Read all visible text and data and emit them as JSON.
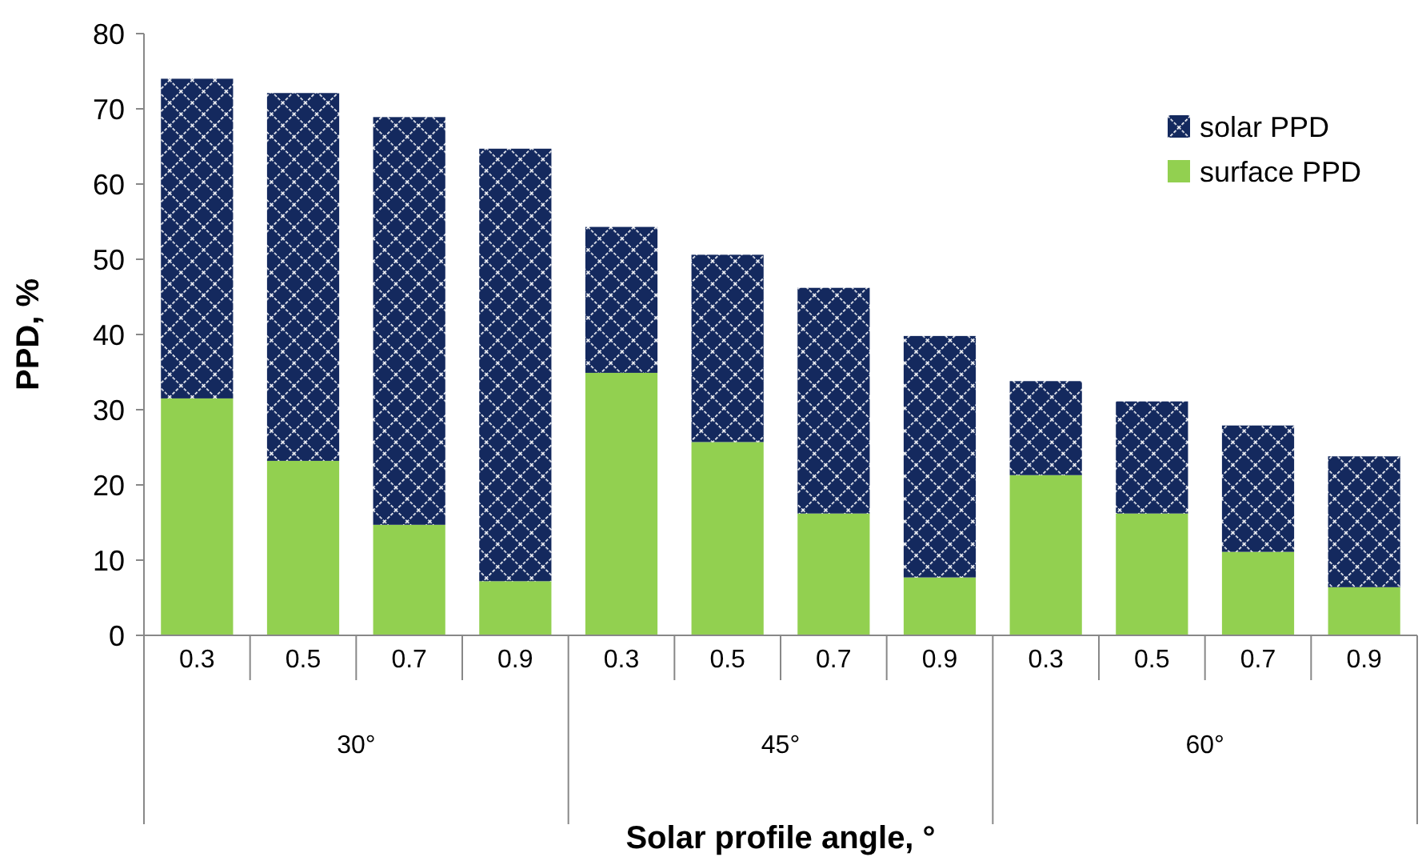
{
  "chart_data": {
    "type": "bar",
    "stacked": true,
    "xlabel": "Solar profile angle, °",
    "ylabel": "PPD, %",
    "categories": [
      "0.3",
      "0.5",
      "0.7",
      "0.9",
      "0.3",
      "0.5",
      "0.7",
      "0.9",
      "0.3",
      "0.5",
      "0.7",
      "0.9"
    ],
    "annotations": [
      "30°",
      "45°",
      "60°"
    ],
    "series": [
      {
        "name": "surface PPD",
        "color": "#92d050",
        "values": [
          31.5,
          23.2,
          14.7,
          7.2,
          34.9,
          25.7,
          16.2,
          7.7,
          21.3,
          16.2,
          11.1,
          6.4
        ]
      },
      {
        "name": "solar PPD",
        "color": "#14295e",
        "values": [
          42.5,
          48.9,
          54.2,
          57.5,
          19.4,
          24.9,
          30.0,
          32.1,
          12.5,
          14.9,
          16.8,
          17.4
        ]
      }
    ],
    "ylim": [
      0,
      80
    ],
    "yticks": [
      0,
      10,
      20,
      30,
      40,
      50,
      60,
      70,
      80
    ],
    "grid": false,
    "legend": "top right"
  }
}
